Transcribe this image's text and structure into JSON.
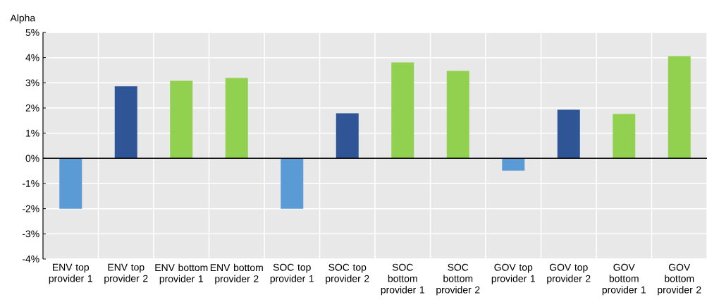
{
  "chart_data": {
    "type": "bar",
    "ylabel": "Alpha",
    "categories": [
      "ENV top provider 1",
      "ENV top provider 2",
      "ENV bottom provider 1",
      "ENV bottom provider 2",
      "SOC top provider 1",
      "SOC top provider 2",
      "SOC bottom provider 1",
      "SOC bottom provider 2",
      "GOV top provider 1",
      "GOV top provider 2",
      "GOV bottom provider 1",
      "GOV bottom provider 2"
    ],
    "values": [
      -2.0,
      2.86,
      3.08,
      3.19,
      -2.0,
      1.79,
      3.81,
      3.47,
      -0.49,
      1.93,
      1.76,
      4.06
    ],
    "colors": [
      "#5b9bd5",
      "#2f5597",
      "#92d050",
      "#92d050",
      "#5b9bd5",
      "#2f5597",
      "#92d050",
      "#92d050",
      "#5b9bd5",
      "#2f5597",
      "#92d050",
      "#92d050"
    ],
    "ylim": [
      -4,
      5
    ],
    "yticks": [
      {
        "value": -4,
        "label": "-4%"
      },
      {
        "value": -3,
        "label": "-3%"
      },
      {
        "value": -2,
        "label": "-2%"
      },
      {
        "value": -1,
        "label": "-1%"
      },
      {
        "value": 0,
        "label": "0%"
      },
      {
        "value": 1,
        "label": "1%"
      },
      {
        "value": 2,
        "label": "2%"
      },
      {
        "value": 3,
        "label": "3%"
      },
      {
        "value": 4,
        "label": "4%"
      },
      {
        "value": 5,
        "label": "5%"
      }
    ],
    "grid": true
  }
}
